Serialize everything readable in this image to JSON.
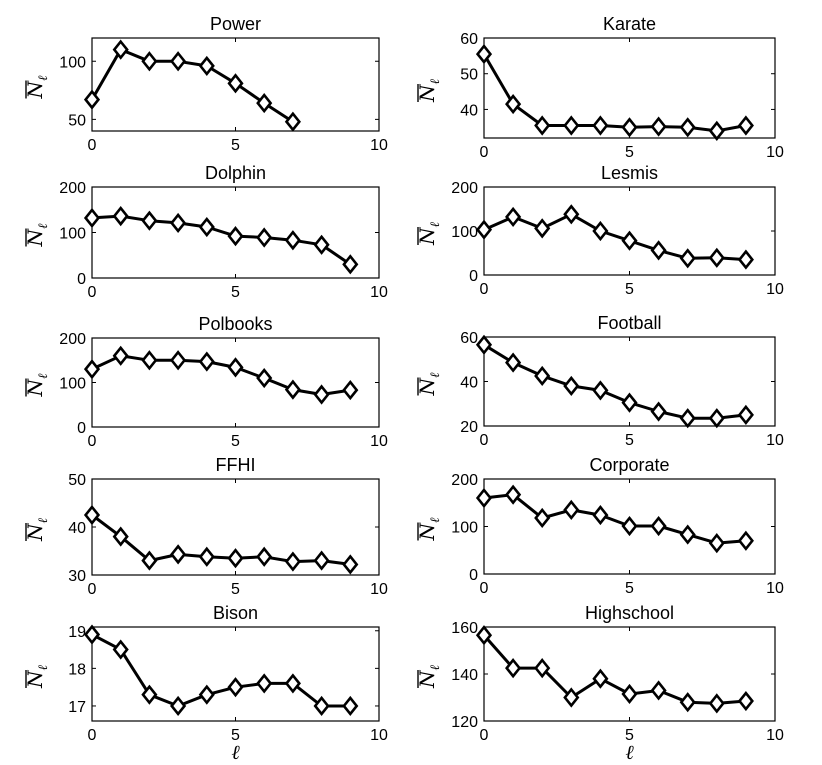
{
  "chart_data": [
    {
      "type": "line",
      "title": "Power",
      "xlabel": "",
      "ylabel": "N̅ℓ",
      "xlim": [
        0,
        10
      ],
      "ylim": [
        40,
        120
      ],
      "xticks": [
        0,
        5,
        10
      ],
      "yticks": [
        50,
        100
      ],
      "x": [
        0,
        1,
        2,
        3,
        4,
        5,
        6,
        7
      ],
      "values": [
        67,
        110,
        100,
        100,
        96,
        81,
        64,
        48
      ]
    },
    {
      "type": "line",
      "title": "Karate",
      "xlabel": "",
      "ylabel": "N̅ℓ",
      "xlim": [
        0,
        10
      ],
      "ylim": [
        32,
        60
      ],
      "xticks": [
        0,
        5,
        10
      ],
      "yticks": [
        40,
        50,
        60
      ],
      "x": [
        0,
        1,
        2,
        3,
        4,
        5,
        6,
        7,
        8,
        9
      ],
      "values": [
        55.5,
        41.5,
        35.5,
        35.5,
        35.5,
        35,
        35.2,
        35,
        34,
        35.5
      ]
    },
    {
      "type": "line",
      "title": "Dolphin",
      "xlabel": "",
      "ylabel": "N̅ℓ",
      "xlim": [
        0,
        10
      ],
      "ylim": [
        0,
        200
      ],
      "xticks": [
        0,
        5,
        10
      ],
      "yticks": [
        0,
        100,
        200
      ],
      "x": [
        0,
        1,
        2,
        3,
        4,
        5,
        6,
        7,
        8,
        9
      ],
      "values": [
        132,
        136,
        126,
        121,
        112,
        92,
        89,
        83,
        73,
        30
      ]
    },
    {
      "type": "line",
      "title": "Lesmis",
      "xlabel": "",
      "ylabel": "N̅ℓ",
      "xlim": [
        0,
        10
      ],
      "ylim": [
        0,
        200
      ],
      "xticks": [
        0,
        5,
        10
      ],
      "yticks": [
        0,
        100,
        200
      ],
      "x": [
        0,
        1,
        2,
        3,
        4,
        5,
        6,
        7,
        8,
        9
      ],
      "values": [
        103,
        132,
        106,
        138,
        100,
        78,
        56,
        38,
        39,
        35
      ]
    },
    {
      "type": "line",
      "title": "Polbooks",
      "xlabel": "",
      "ylabel": "N̅ℓ",
      "xlim": [
        0,
        10
      ],
      "ylim": [
        0,
        200
      ],
      "xticks": [
        0,
        5,
        10
      ],
      "yticks": [
        0,
        100,
        200
      ],
      "x": [
        0,
        1,
        2,
        3,
        4,
        5,
        6,
        7,
        8,
        9
      ],
      "values": [
        130,
        160,
        150,
        150,
        147,
        134,
        110,
        84,
        73,
        83
      ]
    },
    {
      "type": "line",
      "title": "Football",
      "xlabel": "",
      "ylabel": "N̅ℓ",
      "xlim": [
        0,
        10
      ],
      "ylim": [
        20,
        60
      ],
      "xticks": [
        0,
        5,
        10
      ],
      "yticks": [
        20,
        40,
        60
      ],
      "x": [
        0,
        1,
        2,
        3,
        4,
        5,
        6,
        7,
        8,
        9
      ],
      "values": [
        56.5,
        48.5,
        42.5,
        38,
        36,
        30.5,
        26.5,
        23.5,
        23.5,
        25
      ]
    },
    {
      "type": "line",
      "title": "FFHI",
      "xlabel": "",
      "ylabel": "N̅ℓ",
      "xlim": [
        0,
        10
      ],
      "ylim": [
        30,
        50
      ],
      "xticks": [
        0,
        5,
        10
      ],
      "yticks": [
        30,
        40,
        50
      ],
      "x": [
        0,
        1,
        2,
        3,
        4,
        5,
        6,
        7,
        8,
        9
      ],
      "values": [
        42.5,
        38,
        33,
        34.3,
        33.8,
        33.5,
        33.8,
        32.8,
        33,
        32.2
      ]
    },
    {
      "type": "line",
      "title": "Corporate",
      "xlabel": "",
      "ylabel": "N̅ℓ",
      "xlim": [
        0,
        10
      ],
      "ylim": [
        0,
        200
      ],
      "xticks": [
        0,
        5,
        10
      ],
      "yticks": [
        0,
        100,
        200
      ],
      "x": [
        0,
        1,
        2,
        3,
        4,
        5,
        6,
        7,
        8,
        9
      ],
      "values": [
        160,
        167,
        118,
        135,
        124,
        101,
        101,
        83,
        65,
        70
      ]
    },
    {
      "type": "line",
      "title": "Bison",
      "xlabel": "ℓ",
      "ylabel": "N̅ℓ",
      "xlim": [
        0,
        10
      ],
      "ylim": [
        16.6,
        19.1
      ],
      "xticks": [
        0,
        5,
        10
      ],
      "yticks": [
        17,
        18,
        19
      ],
      "x": [
        0,
        1,
        2,
        3,
        4,
        5,
        6,
        7,
        8,
        9
      ],
      "values": [
        18.9,
        18.5,
        17.3,
        17,
        17.3,
        17.5,
        17.6,
        17.6,
        17,
        17
      ]
    },
    {
      "type": "line",
      "title": "Highschool",
      "xlabel": "ℓ",
      "ylabel": "N̅ℓ",
      "xlim": [
        0,
        10
      ],
      "ylim": [
        120,
        160
      ],
      "xticks": [
        0,
        5,
        10
      ],
      "yticks": [
        120,
        140,
        160
      ],
      "x": [
        0,
        1,
        2,
        3,
        4,
        5,
        6,
        7,
        8,
        9
      ],
      "values": [
        156.5,
        142.5,
        142.5,
        130,
        138,
        131.5,
        133,
        128,
        127.5,
        128.5
      ]
    }
  ]
}
